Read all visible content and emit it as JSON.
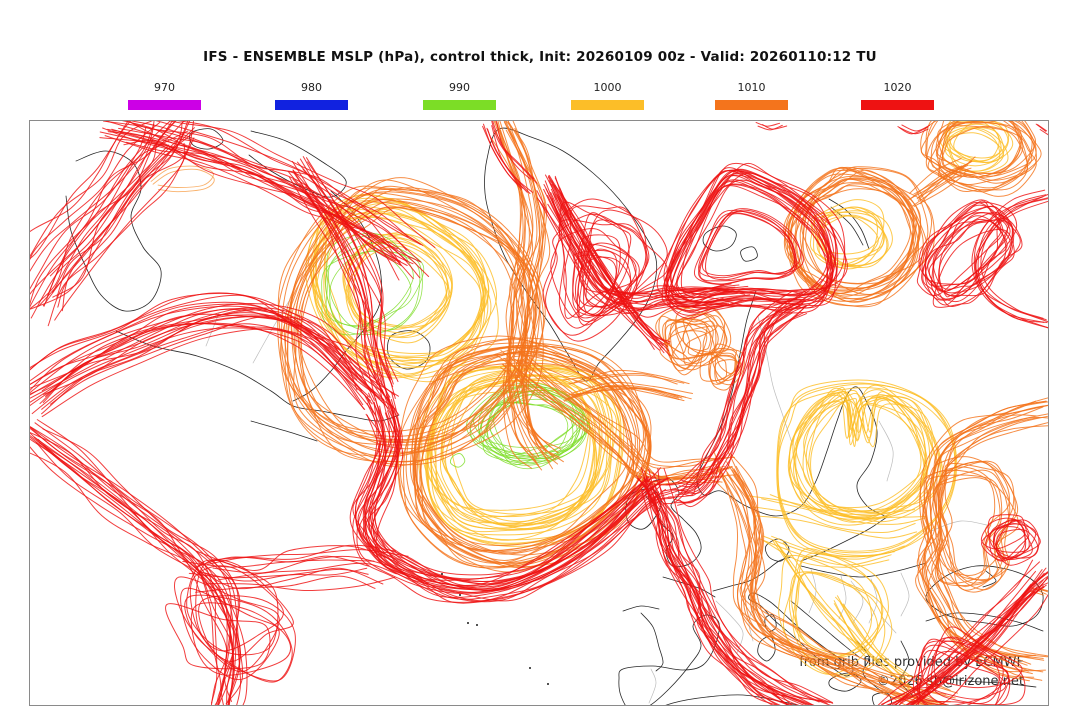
{
  "title": "IFS - ENSEMBLE MSLP (hPa), control thick, Init: 20260109 00z - Valid: 20260110:12 TU",
  "legend": {
    "items": [
      {
        "label": "970",
        "color_key": "magenta"
      },
      {
        "label": "980",
        "color_key": "blue"
      },
      {
        "label": "990",
        "color_key": "green"
      },
      {
        "label": "1000",
        "color_key": "yellow"
      },
      {
        "label": "1010",
        "color_key": "orange"
      },
      {
        "label": "1020",
        "color_key": "red"
      }
    ]
  },
  "colors": {
    "magenta": "#cc00e6",
    "blue": "#1122e0",
    "green": "#7cdd26",
    "yellow": "#fcbe28",
    "orange": "#f4741c",
    "red": "#ee1212",
    "lorange": "#f8a04a",
    "coast": "#1c1c1c",
    "inner_border": "#b5b5b5",
    "map_border": "#8a8a8a",
    "attribution": "#2e2e2e"
  },
  "attribution": {
    "line1": "from grib files provided by ECMWF",
    "line2": "©2026 sb@irizone.net"
  },
  "chart_data": {
    "type": "contour-ensemble-map",
    "title": "IFS - ENSEMBLE MSLP (hPa), control thick",
    "init": "20260109 00z",
    "valid": "20260110:12 TU",
    "parameter": "MSLP (hPa)",
    "levels": [
      970,
      980,
      990,
      1000,
      1010,
      1020
    ],
    "legend_position": "top",
    "region": "North Atlantic / Europe"
  }
}
